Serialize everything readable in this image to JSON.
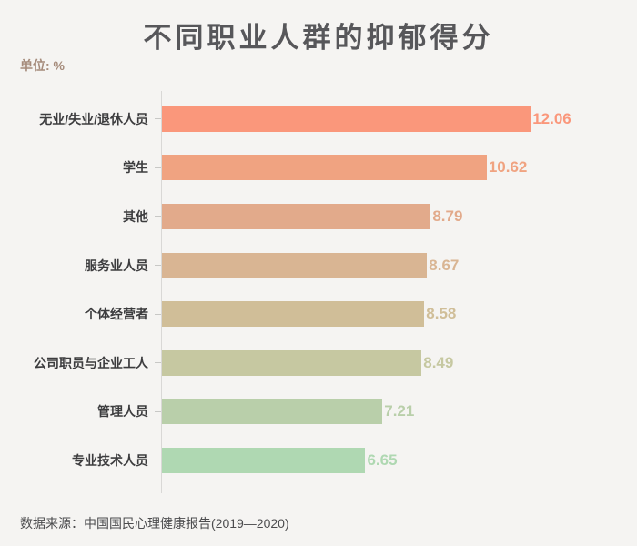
{
  "page": {
    "background_color": "#f5f4f2",
    "title": "不同职业人群的抑郁得分",
    "title_color": "#57575a",
    "unit_label": "单位: %",
    "unit_label_color": "#a58b7b",
    "source_label": "数据来源：中国国民心理健康报告(2019—2020)"
  },
  "chart_data": {
    "type": "bar",
    "orientation": "horizontal",
    "title": "不同职业人群的抑郁得分",
    "unit": "%",
    "categories": [
      "无业/失业/退休人员",
      "学生",
      "其他",
      "服务业人员",
      "个体经营者",
      "公司职员与企业工人",
      "管理人员",
      "专业技术人员"
    ],
    "values": [
      12.06,
      10.62,
      8.79,
      8.67,
      8.58,
      8.49,
      7.21,
      6.65
    ],
    "value_labels": [
      "12.06",
      "10.62",
      "8.79",
      "8.67",
      "8.58",
      "8.49",
      "7.21",
      "6.65"
    ],
    "bar_colors": [
      "#fa977b",
      "#f0a381",
      "#e2aa8b",
      "#d9b593",
      "#d0be98",
      "#c6c8a1",
      "#b9cfaa",
      "#afd8b2"
    ],
    "xlim": [
      0,
      13
    ],
    "grid": false,
    "legend": false,
    "value_label_position": "end-of-bar",
    "source": "数据来源：中国国民心理健康报告(2019—2020)"
  }
}
